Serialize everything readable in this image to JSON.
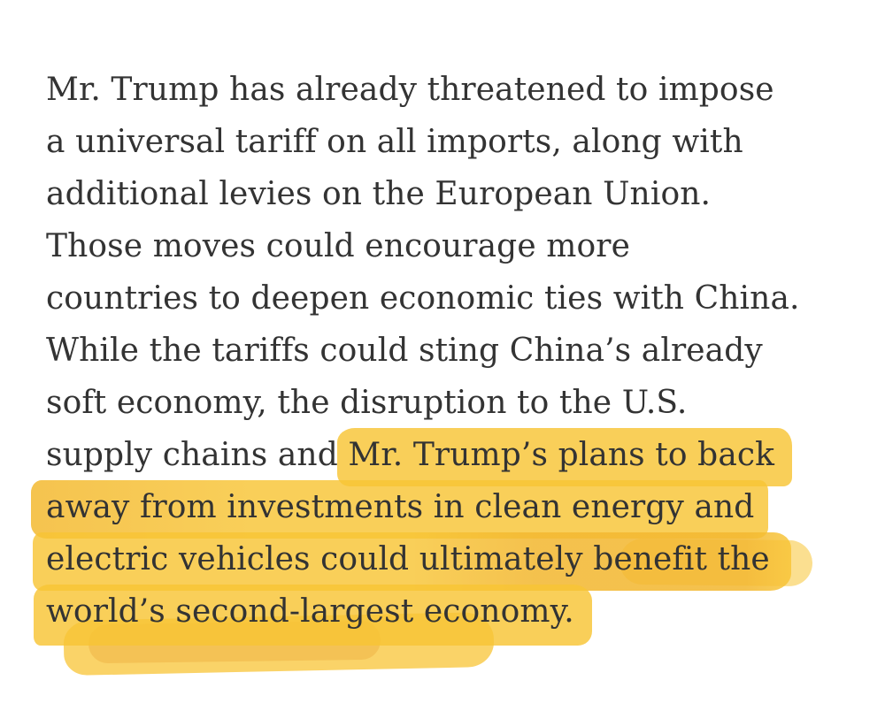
{
  "page": {
    "background": "#ffffff",
    "text_color": "#333333",
    "highlight_color": "#f8c435",
    "highlight_overlap_color": "#e79a2b"
  },
  "article": {
    "lines": [
      {
        "segments": [
          {
            "text": "Mr. Trump has already threatened to impose",
            "highlight": false
          }
        ]
      },
      {
        "segments": [
          {
            "text": "a universal tariff on all imports, along with",
            "highlight": false
          }
        ]
      },
      {
        "segments": [
          {
            "text": "additional levies on the European Union.",
            "highlight": false
          }
        ]
      },
      {
        "segments": [
          {
            "text": "Those moves could encourage more",
            "highlight": false
          }
        ]
      },
      {
        "segments": [
          {
            "text": "countries to deepen economic ties with China.",
            "highlight": false
          }
        ]
      },
      {
        "segments": [
          {
            "text": "While the tariffs could sting China’s already",
            "highlight": false
          }
        ]
      },
      {
        "segments": [
          {
            "text": "soft economy, the disruption to the U.S.",
            "highlight": false
          }
        ]
      },
      {
        "segments": [
          {
            "text": "supply chains and ",
            "highlight": false
          },
          {
            "text": "Mr. Trump’s plans to back",
            "highlight": true
          }
        ]
      },
      {
        "segments": [
          {
            "text": "away from investments in clean energy and",
            "highlight": true
          }
        ]
      },
      {
        "segments": [
          {
            "text": "electric vehicles could ultimately benefit the",
            "highlight": true
          }
        ]
      },
      {
        "segments": [
          {
            "text": "world’s second-largest economy.",
            "highlight": true
          }
        ]
      }
    ]
  }
}
